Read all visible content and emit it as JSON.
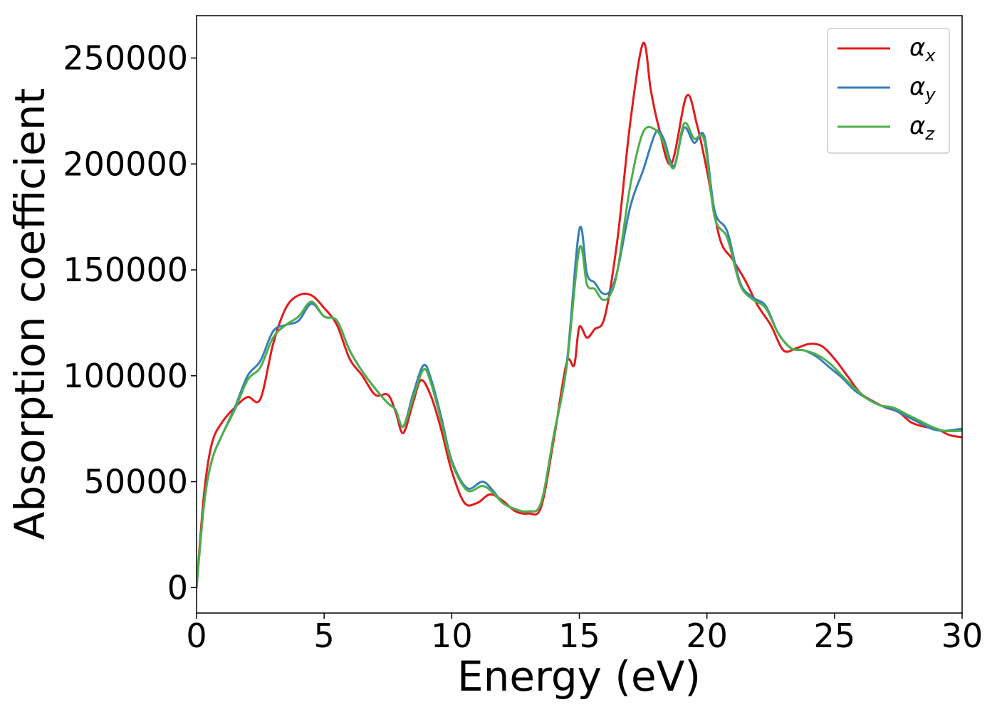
{
  "chart_data": {
    "type": "line",
    "title": "",
    "xlabel": "Energy (eV)",
    "ylabel": "Absorption coefficient",
    "xlim": [
      0,
      30
    ],
    "ylim": [
      -12000,
      270000
    ],
    "xticks": [
      0,
      5,
      10,
      15,
      20,
      25,
      30
    ],
    "yticks": [
      0,
      50000,
      100000,
      150000,
      200000,
      250000
    ],
    "xtick_labels": [
      "0",
      "5",
      "10",
      "15",
      "20",
      "25",
      "30"
    ],
    "ytick_labels": [
      "0",
      "50000",
      "100000",
      "150000",
      "200000",
      "250000"
    ],
    "grid": false,
    "legend": {
      "placement": "top-right"
    },
    "series": [
      {
        "name": "α",
        "subscript": "x",
        "color": "#e41a1c",
        "x": [
          0,
          0.3,
          0.6,
          1.0,
          1.5,
          2.0,
          2.5,
          3.0,
          3.5,
          4.0,
          4.5,
          5.0,
          5.5,
          6.0,
          6.5,
          7.0,
          7.5,
          7.8,
          8.1,
          8.5,
          8.8,
          9.2,
          9.6,
          10.0,
          10.5,
          11.0,
          11.5,
          12.0,
          12.5,
          13.0,
          13.5,
          14.0,
          14.5,
          14.8,
          15.0,
          15.3,
          15.6,
          16.0,
          16.5,
          17.0,
          17.5,
          17.8,
          18.1,
          18.6,
          19.2,
          19.6,
          20.0,
          20.5,
          21.0,
          21.5,
          22.0,
          22.5,
          23.0,
          23.5,
          24.0,
          24.5,
          25.0,
          25.5,
          26.0,
          26.5,
          27.0,
          27.5,
          28.0,
          28.5,
          29.0,
          29.5,
          30.0
        ],
        "values": [
          0,
          45000,
          68000,
          78000,
          85000,
          90000,
          89000,
          115000,
          132000,
          138000,
          138000,
          132000,
          124000,
          108000,
          100000,
          91000,
          91000,
          83000,
          73000,
          88000,
          98000,
          90000,
          74000,
          55000,
          40000,
          40000,
          44000,
          41000,
          36000,
          35000,
          38000,
          70000,
          106000,
          105000,
          123000,
          118000,
          122000,
          128000,
          165000,
          220000,
          257000,
          235000,
          218000,
          200000,
          232000,
          219000,
          197000,
          165000,
          155000,
          145000,
          133000,
          124000,
          112000,
          113000,
          115000,
          114000,
          108000,
          100000,
          92000,
          88000,
          85000,
          83000,
          78000,
          76000,
          75000,
          72000,
          71000
        ]
      },
      {
        "name": "α",
        "subscript": "y",
        "color": "#377eb8",
        "x": [
          0,
          0.3,
          0.6,
          1.0,
          1.5,
          2.0,
          2.5,
          3.0,
          3.5,
          4.0,
          4.5,
          5.0,
          5.5,
          6.0,
          6.5,
          7.0,
          7.5,
          7.8,
          8.1,
          8.5,
          8.9,
          9.2,
          9.6,
          10.0,
          10.6,
          11.2,
          11.6,
          12.0,
          12.5,
          13.0,
          13.5,
          14.0,
          14.5,
          15.0,
          15.3,
          15.6,
          15.9,
          16.2,
          16.5,
          17.0,
          17.5,
          18.0,
          18.3,
          18.7,
          19.1,
          19.5,
          19.9,
          20.3,
          20.8,
          21.3,
          21.8,
          22.3,
          22.8,
          23.3,
          23.8,
          24.3,
          24.8,
          25.3,
          25.8,
          26.3,
          26.8,
          27.3,
          27.8,
          28.3,
          28.8,
          29.3,
          30.0
        ],
        "values": [
          0,
          40000,
          60000,
          72000,
          85000,
          100000,
          107000,
          121000,
          124000,
          126000,
          134000,
          128000,
          126000,
          112000,
          102000,
          94000,
          87000,
          84000,
          76000,
          92000,
          105000,
          98000,
          80000,
          60000,
          47000,
          50000,
          46000,
          40000,
          37000,
          36000,
          40000,
          72000,
          105000,
          169000,
          148000,
          144000,
          139000,
          140000,
          150000,
          180000,
          197000,
          215000,
          212000,
          199000,
          217000,
          210000,
          213000,
          178000,
          168000,
          144000,
          137000,
          133000,
          120000,
          113000,
          112000,
          109000,
          104000,
          99000,
          93000,
          89000,
          86000,
          84000,
          81000,
          78000,
          75000,
          74000,
          75000
        ]
      },
      {
        "name": "α",
        "subscript": "z",
        "color": "#4daf4a",
        "x": [
          0,
          0.3,
          0.6,
          1.0,
          1.5,
          2.0,
          2.5,
          3.0,
          3.5,
          4.0,
          4.5,
          5.0,
          5.5,
          6.0,
          6.5,
          7.0,
          7.5,
          7.8,
          8.1,
          8.5,
          8.9,
          9.2,
          9.6,
          10.0,
          10.6,
          11.2,
          11.6,
          12.0,
          12.5,
          13.0,
          13.5,
          14.0,
          14.5,
          15.0,
          15.3,
          15.6,
          15.9,
          16.2,
          16.5,
          17.0,
          17.5,
          18.0,
          18.3,
          18.7,
          19.1,
          19.5,
          19.9,
          20.3,
          20.8,
          21.3,
          21.8,
          22.3,
          22.8,
          23.3,
          23.8,
          24.3,
          24.8,
          25.3,
          25.8,
          26.3,
          26.8,
          27.3,
          27.8,
          28.3,
          28.8,
          29.3,
          30.0
        ],
        "values": [
          0,
          40000,
          60000,
          72000,
          84000,
          98000,
          104000,
          118000,
          124000,
          128000,
          135000,
          128000,
          126000,
          112000,
          102000,
          94000,
          87000,
          84000,
          76000,
          90000,
          103000,
          96000,
          78000,
          59000,
          46000,
          48000,
          45000,
          40000,
          37000,
          36000,
          40000,
          72000,
          104000,
          160000,
          143000,
          141000,
          136000,
          138000,
          150000,
          190000,
          215000,
          216000,
          210000,
          198000,
          219000,
          212000,
          211000,
          175000,
          165000,
          143000,
          136000,
          132000,
          120000,
          113000,
          112000,
          110000,
          106000,
          100000,
          94000,
          89000,
          86000,
          85000,
          82000,
          79000,
          76000,
          74000,
          74000
        ]
      }
    ]
  }
}
